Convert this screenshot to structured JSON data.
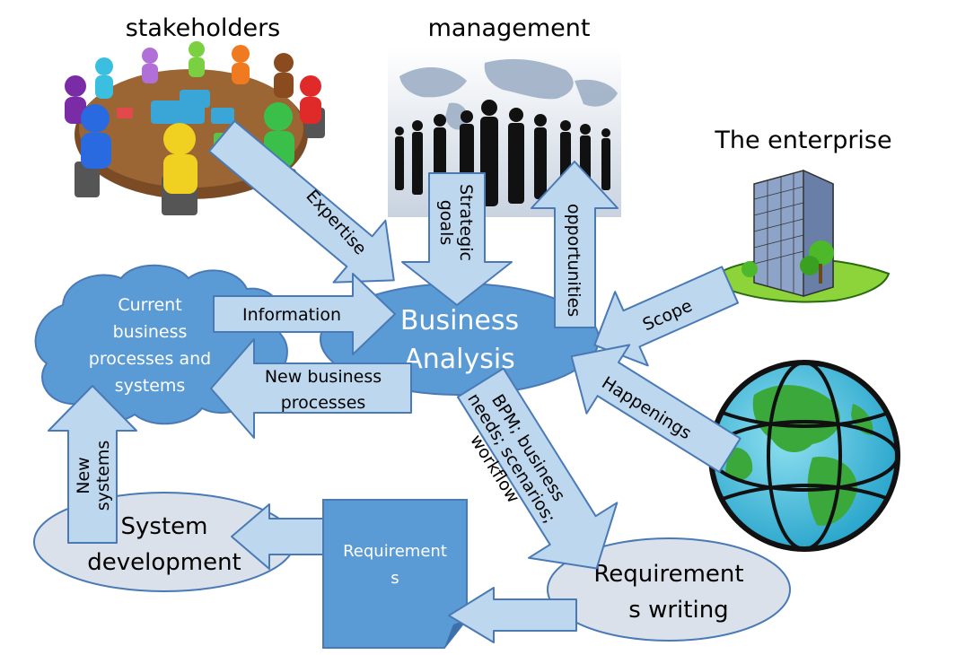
{
  "titles": {
    "stakeholders": "stakeholders",
    "management": "management",
    "enterprise": "The enterprise"
  },
  "nodes": {
    "business_analysis": [
      "Business",
      "Analysis"
    ],
    "current_processes": [
      "Current",
      "business",
      "processes and",
      "systems"
    ],
    "system_development": [
      "System",
      "development"
    ],
    "requirements_doc": [
      "Requirement",
      "s"
    ],
    "requirements_writing": [
      "Requirement",
      "s writing"
    ]
  },
  "arrows": {
    "expertise": "Expertise",
    "strategic_goals": [
      "Strategic",
      "goals"
    ],
    "opportunities": "opportunities",
    "scope": "Scope",
    "happenings": "Happenings",
    "information": "Information",
    "new_business_processes": [
      "New business",
      "processes"
    ],
    "bpm": [
      "BPM; business",
      "needs; scenarios;",
      "workflow"
    ],
    "new_systems": [
      "New",
      "systems"
    ]
  },
  "colors": {
    "arrow_fill": "#bdd7ee",
    "arrow_stroke": "#4a7ab5",
    "node_blue": "#5b9bd5",
    "oval_gray": "#dbe1ea"
  },
  "icons": [
    "meeting-table-icon",
    "business-people-map-icon",
    "office-building-icon",
    "globe-icon"
  ]
}
